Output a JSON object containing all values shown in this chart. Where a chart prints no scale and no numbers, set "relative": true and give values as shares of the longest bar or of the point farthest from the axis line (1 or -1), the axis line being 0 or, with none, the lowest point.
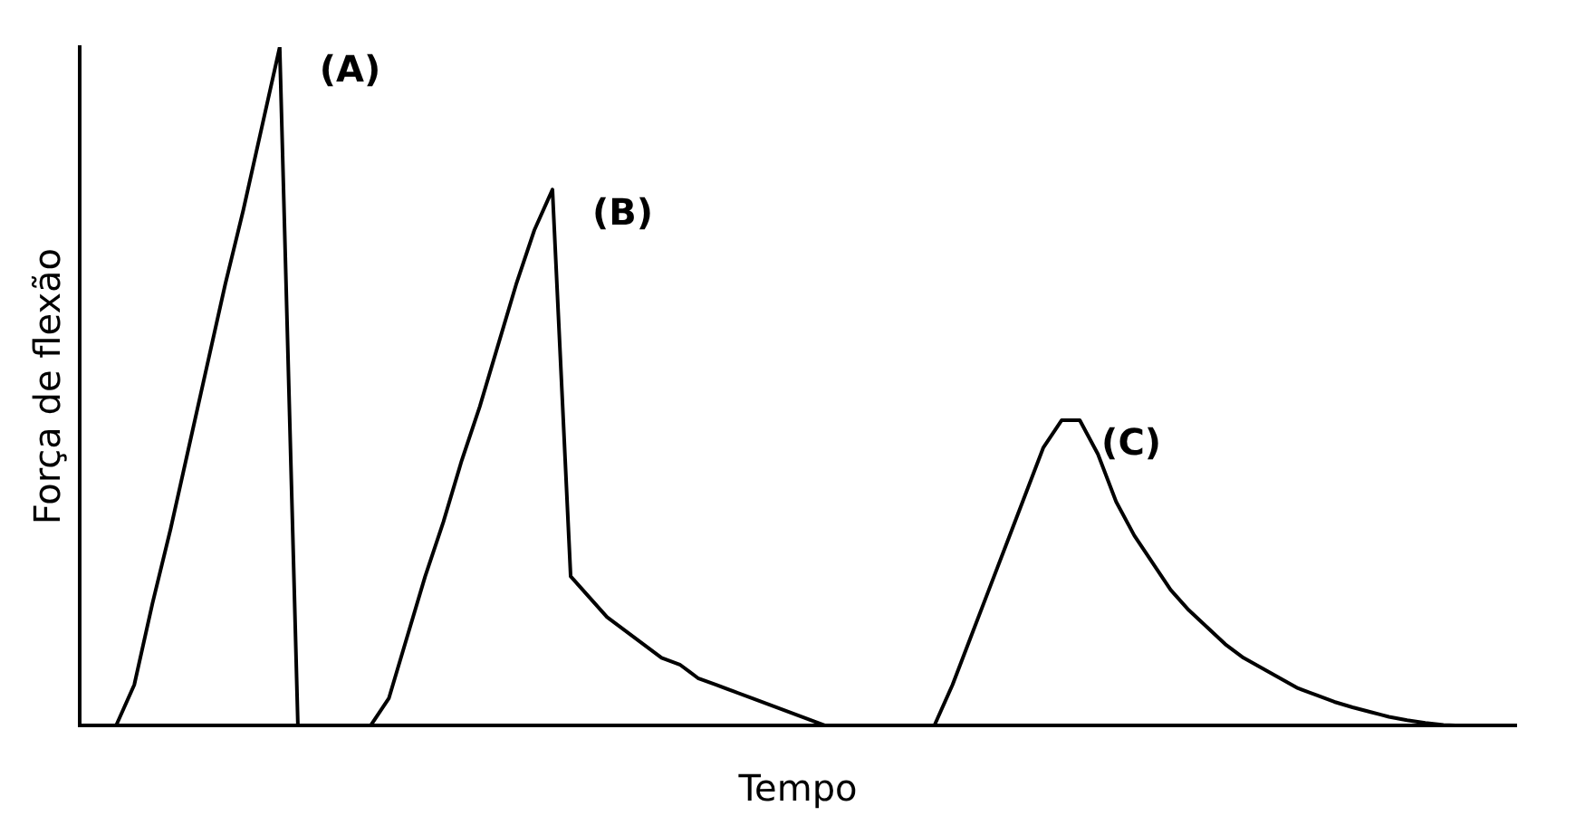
{
  "chart_data": {
    "type": "line",
    "xlabel": "Tempo",
    "ylabel": "Força de flexão",
    "relative": true,
    "grid": false,
    "legend": false,
    "marker": "none",
    "line_style": "solid",
    "categories": [
      null,
      null,
      null,
      null,
      null,
      null,
      null,
      null,
      null,
      null,
      null,
      null,
      null,
      null,
      null,
      null,
      null,
      null,
      null,
      null,
      null,
      null,
      null,
      null,
      null,
      null,
      null,
      null,
      null,
      null,
      null,
      null,
      null,
      null,
      null,
      null,
      null,
      null,
      null,
      null,
      null,
      null,
      null,
      null,
      null,
      null,
      null,
      null,
      null,
      null,
      null,
      null,
      null,
      null,
      null,
      null,
      null,
      null,
      null,
      null,
      null,
      null,
      null,
      null,
      null,
      null,
      null,
      null,
      null,
      null,
      null,
      null,
      null,
      null,
      null,
      null,
      null,
      null,
      null,
      null
    ],
    "series": [
      {
        "name": "(A)",
        "color": "#000000",
        "values": [
          null,
          null,
          0,
          0.06,
          0.18,
          0.29,
          0.41,
          0.53,
          0.65,
          0.76,
          0.88,
          1,
          0,
          null,
          null,
          null,
          null,
          null,
          null,
          null,
          null,
          null,
          null,
          null,
          null,
          null,
          null,
          null,
          null,
          null,
          null,
          null,
          null,
          null,
          null,
          null,
          null,
          null,
          null,
          null,
          null,
          null,
          null,
          null,
          null,
          null,
          null,
          null,
          null,
          null,
          null,
          null,
          null,
          null,
          null,
          null,
          null,
          null,
          null,
          null,
          null,
          null,
          null,
          null,
          null,
          null,
          null,
          null,
          null,
          null,
          null,
          null,
          null,
          null,
          null,
          null,
          null,
          null,
          null,
          null
        ]
      },
      {
        "name": "(B)",
        "color": "#000000",
        "values": [
          null,
          null,
          null,
          null,
          null,
          null,
          null,
          null,
          null,
          null,
          null,
          null,
          null,
          null,
          null,
          null,
          0,
          0.04,
          0.13,
          0.22,
          0.3,
          0.39,
          0.47,
          0.56,
          0.65,
          0.73,
          0.79,
          0.22,
          0.19,
          0.16,
          0.14,
          0.12,
          0.1,
          0.09,
          0.07,
          0.06,
          0.05,
          0.04,
          0.03,
          0.02,
          0.01,
          0,
          null,
          null,
          null,
          null,
          null,
          null,
          null,
          null,
          null,
          null,
          null,
          null,
          null,
          null,
          null,
          null,
          null,
          null,
          null,
          null,
          null,
          null,
          null,
          null,
          null,
          null,
          null,
          null,
          null,
          null,
          null,
          null,
          null,
          null,
          null,
          null,
          null,
          null
        ]
      },
      {
        "name": "(C)",
        "color": "#000000",
        "values": [
          null,
          null,
          null,
          null,
          null,
          null,
          null,
          null,
          null,
          null,
          null,
          null,
          null,
          null,
          null,
          null,
          null,
          null,
          null,
          null,
          null,
          null,
          null,
          null,
          null,
          null,
          null,
          null,
          null,
          null,
          null,
          null,
          null,
          null,
          null,
          null,
          null,
          null,
          null,
          null,
          null,
          null,
          null,
          null,
          null,
          null,
          null,
          0,
          0.06,
          0.13,
          0.2,
          0.27,
          0.34,
          0.41,
          0.45,
          0.45,
          0.4,
          0.33,
          0.28,
          0.24,
          0.2,
          0.17,
          0.145,
          0.12,
          0.1,
          0.085,
          0.07,
          0.055,
          0.045,
          0.035,
          0.027,
          0.02,
          0.013,
          0.008,
          0.004,
          0.001,
          0,
          null,
          null,
          null
        ]
      }
    ]
  }
}
